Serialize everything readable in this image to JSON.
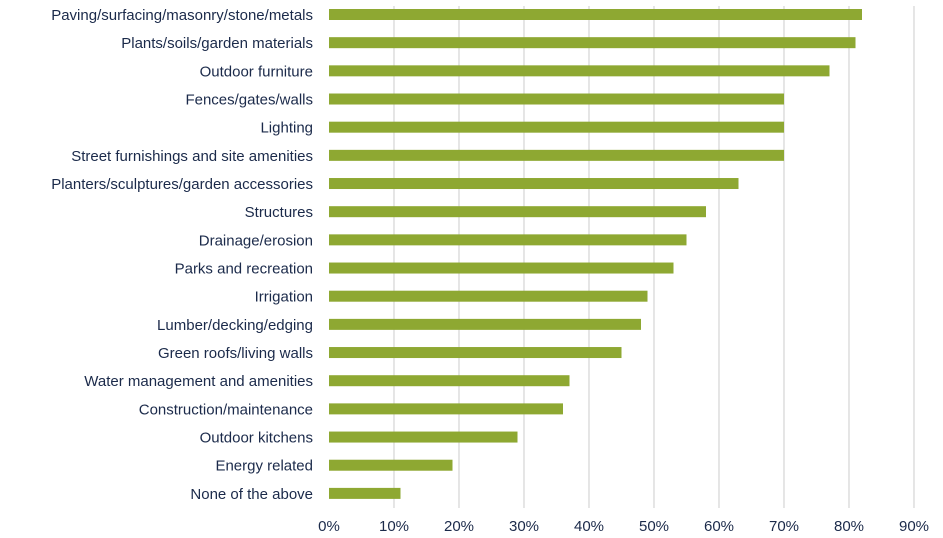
{
  "chart_data": {
    "type": "bar",
    "orientation": "horizontal",
    "categories": [
      "Paving/surfacing/masonry/stone/metals",
      "Plants/soils/garden materials",
      "Outdoor furniture",
      "Fences/gates/walls",
      "Lighting",
      "Street furnishings and site amenities",
      "Planters/sculptures/garden accessories",
      "Structures",
      "Drainage/erosion",
      "Parks and recreation",
      "Irrigation",
      "Lumber/decking/edging",
      "Green roofs/living walls",
      "Water management and amenities",
      "Construction/maintenance",
      "Outdoor kitchens",
      "Energy related",
      "None of the above"
    ],
    "values": [
      82,
      81,
      77,
      70,
      70,
      70,
      63,
      58,
      55,
      53,
      49,
      48,
      45,
      37,
      36,
      29,
      19,
      11
    ],
    "xticks": [
      "0%",
      "10%",
      "20%",
      "30%",
      "40%",
      "50%",
      "60%",
      "70%",
      "80%",
      "90%"
    ],
    "xlim": [
      0,
      90
    ],
    "grid": true,
    "bar_color": "#8ea832",
    "text_color": "#1b2a4a",
    "grid_color": "#d4d4d4"
  }
}
